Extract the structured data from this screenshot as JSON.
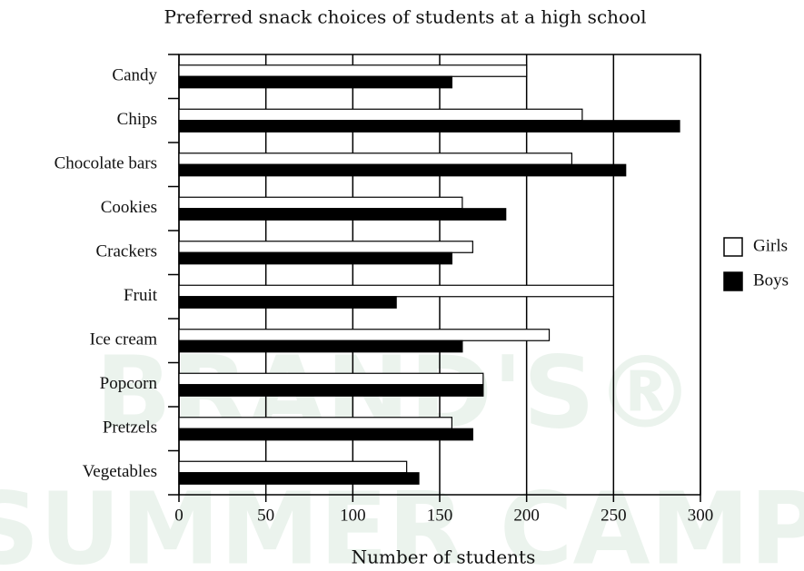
{
  "chart_data": {
    "type": "hbar",
    "title": "Preferred snack choices of students at a high school",
    "x_label": "Number of students",
    "watermark": [
      "BRAND'S®",
      "SUMMER CAMP"
    ],
    "categories": [
      "Candy",
      "Chips",
      "Chocolate bars",
      "Cookies",
      "Crackers",
      "Fruit",
      "Ice cream",
      "Popcorn",
      "Pretzels",
      "Vegetables"
    ],
    "series": [
      {
        "name": "Girls",
        "color": "#ffffff",
        "values": [
          200,
          232,
          226,
          163,
          169,
          250,
          213,
          175,
          157,
          131
        ]
      },
      {
        "name": "Boys",
        "color": "#000000",
        "values": [
          157,
          288,
          257,
          188,
          157,
          125,
          163,
          175,
          169,
          138
        ]
      }
    ],
    "xlim": [
      0,
      300
    ],
    "xticks": [
      0,
      50,
      100,
      150,
      200,
      250,
      300
    ],
    "grid": true,
    "legend": "right"
  }
}
